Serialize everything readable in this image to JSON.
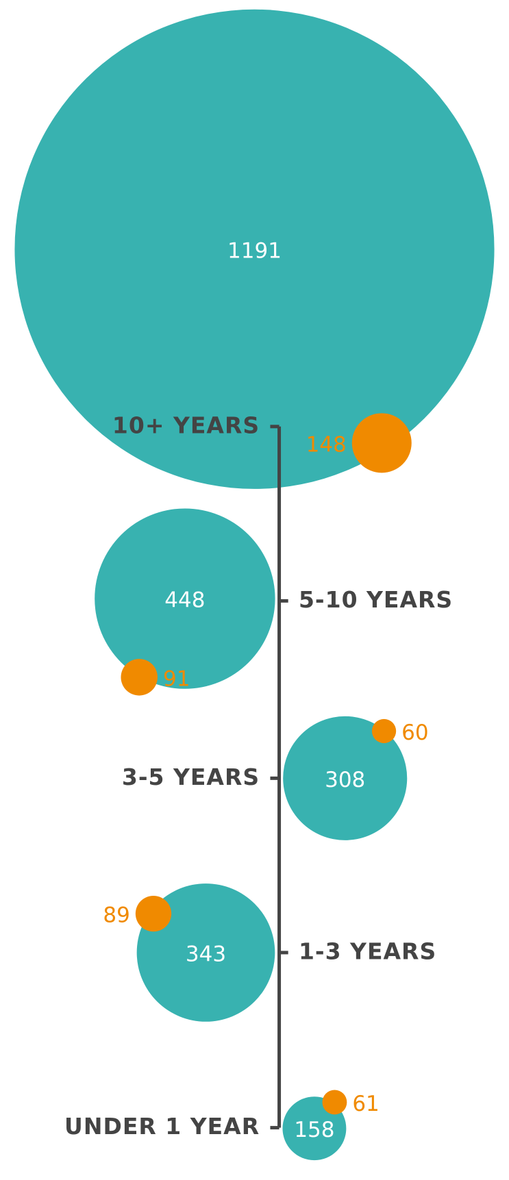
{
  "chart_data": {
    "type": "bubble",
    "categories": [
      "10+ YEARS",
      "5-10 YEARS",
      "3-5 YEARS",
      "1-3 YEARS",
      "UNDER 1 YEAR"
    ],
    "series": [
      {
        "color": "#38b2b0",
        "values": [
          1191,
          448,
          308,
          343,
          158
        ]
      },
      {
        "color": "#f08a00",
        "values": [
          148,
          91,
          60,
          89,
          61
        ]
      }
    ],
    "axis_color": "#444444"
  }
}
